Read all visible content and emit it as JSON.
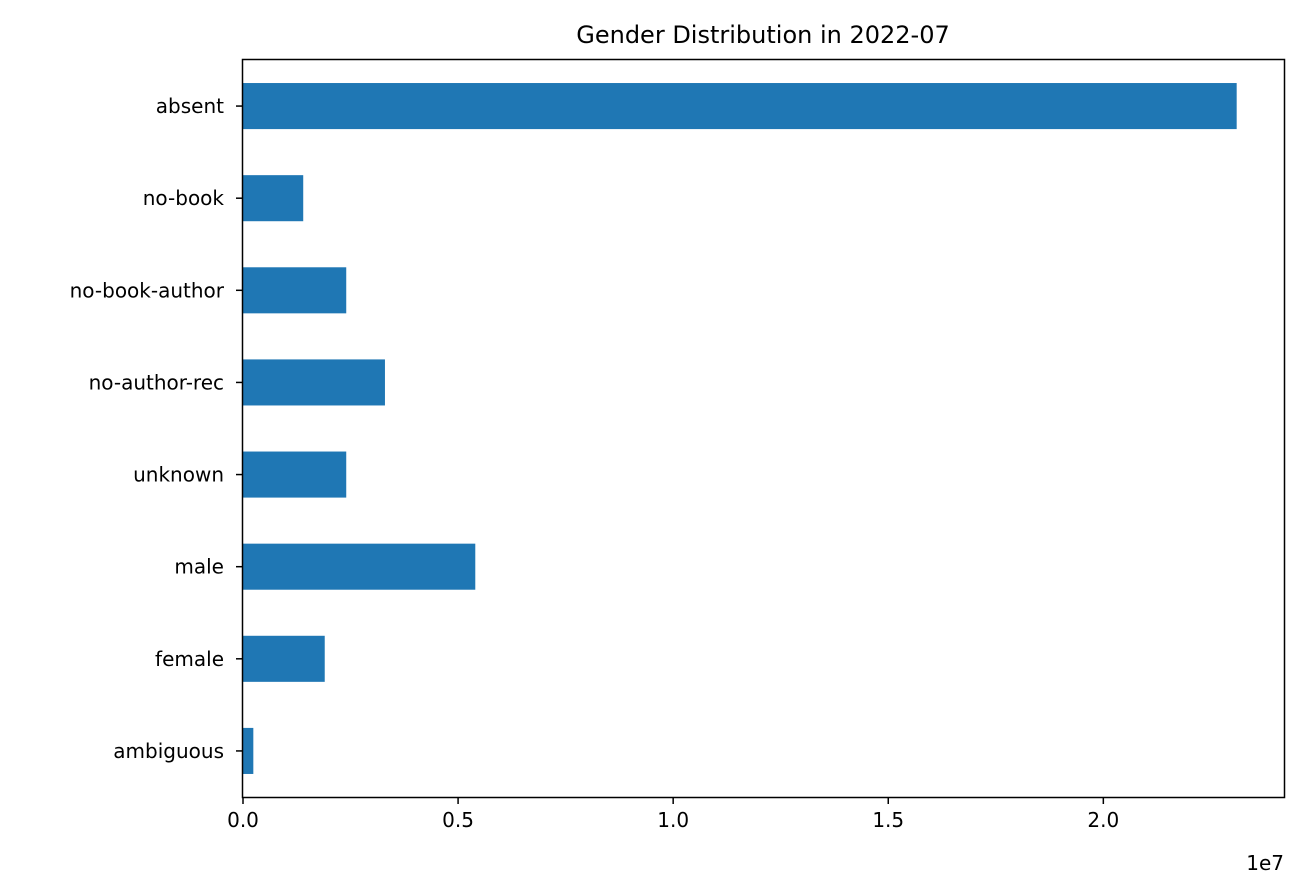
{
  "chart_data": {
    "type": "bar",
    "orientation": "horizontal",
    "title": "Gender Distribution in 2022-07",
    "xlabel": "",
    "ylabel": "",
    "categories": [
      "absent",
      "no-book",
      "no-book-author",
      "no-author-rec",
      "unknown",
      "male",
      "female",
      "ambiguous"
    ],
    "values": [
      23100000,
      1400000,
      2400000,
      3300000,
      2400000,
      5400000,
      1900000,
      240000
    ],
    "xlim": [
      0,
      24200000
    ],
    "xticks": [
      0,
      5000000,
      10000000,
      15000000,
      20000000
    ],
    "xtick_labels": [
      "0.0",
      "0.5",
      "1.0",
      "1.5",
      "2.0"
    ],
    "x_offset_label": "1e7",
    "grid": false,
    "legend": false,
    "colors": {
      "bar": "#1f77b4",
      "axes": "#000000"
    }
  }
}
